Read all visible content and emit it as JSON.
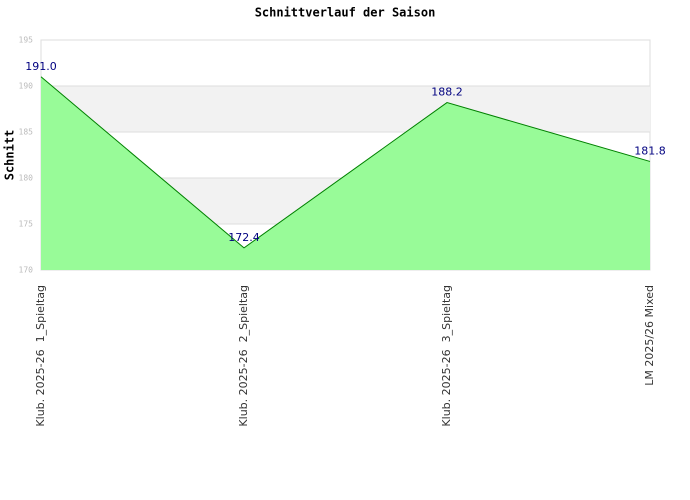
{
  "chart_data": {
    "type": "area",
    "title": "Schnittverlauf der Saison",
    "y_label": "Schnitt",
    "categories": [
      "Klub. 2025-26  1_Spieltag",
      "Klub. 2025-26  2_Spieltag",
      "Klub. 2025-26  3_Spieltag",
      "LM 2025/26 Mixed"
    ],
    "values": [
      191.0,
      172.4,
      188.2,
      181.8
    ],
    "value_labels": [
      "191.0",
      "172.4",
      "188.2",
      "181.8"
    ],
    "color": "#008000",
    "fill": "#98fb98",
    "ylim": [
      170,
      195
    ],
    "yticks": [
      170,
      175,
      180,
      185,
      190,
      195
    ],
    "grid": true
  }
}
